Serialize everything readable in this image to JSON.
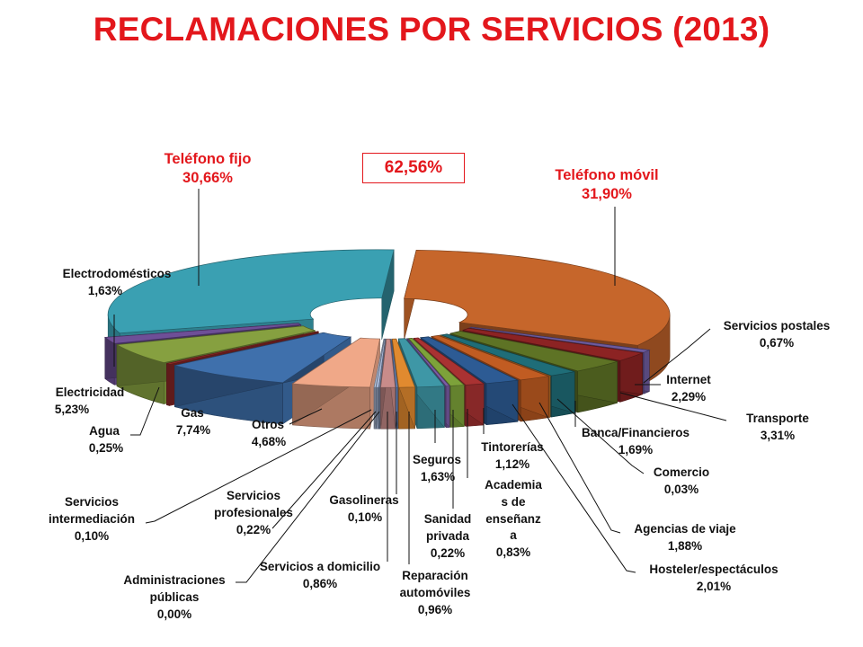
{
  "title": "RECLAMACIONES POR SERVICIOS (2013)",
  "combined_label": "62,56%",
  "chart_data": {
    "type": "pie",
    "title": "RECLAMACIONES POR SERVICIOS (2013)",
    "unit": "%",
    "slices": [
      {
        "label": "Teléfono móvil",
        "value": 31.9,
        "display": "31,90%",
        "color": "#c6662b"
      },
      {
        "label": "Servicios postales",
        "value": 0.67,
        "display": "0,67%",
        "color": "#6e5b9e"
      },
      {
        "label": "Internet",
        "value": 2.29,
        "display": "2,29%",
        "color": "#8c2323"
      },
      {
        "label": "Transporte",
        "value": 3.31,
        "display": "3,31%",
        "color": "#5e7325"
      },
      {
        "label": "Banca/Financieros",
        "value": 1.69,
        "display": "1,69%",
        "color": "#1f6d78"
      },
      {
        "label": "Comercio",
        "value": 0.03,
        "display": "0,03%",
        "color": "#d9812e"
      },
      {
        "label": "Agencias de viaje",
        "value": 1.88,
        "display": "1,88%",
        "color": "#c15c22"
      },
      {
        "label": "Hosteler/espectáculos",
        "value": 2.01,
        "display": "2,01%",
        "color": "#2d5b94"
      },
      {
        "label": "Tintorerías",
        "value": 1.12,
        "display": "1,12%",
        "color": "#a93232"
      },
      {
        "label": "Academias de enseñanza",
        "value": 0.83,
        "display": "0,83%",
        "color": "#7da23a"
      },
      {
        "label": "Sanidad privada",
        "value": 0.22,
        "display": "0,22%",
        "color": "#7a5ca6"
      },
      {
        "label": "Seguros",
        "value": 1.63,
        "display": "1,63%",
        "color": "#3e97a6"
      },
      {
        "label": "Reparación automóviles",
        "value": 0.96,
        "display": "0,96%",
        "color": "#e18a2f"
      },
      {
        "label": "Gasolineras",
        "value": 0.1,
        "display": "0,10%",
        "color": "#6f8fc6"
      },
      {
        "label": "Servicios a domicilio",
        "value": 0.86,
        "display": "0,86%",
        "color": "#c98c8a"
      },
      {
        "label": "Administraciones públicas",
        "value": 0.0,
        "display": "0,00%",
        "color": "#8e9dc0"
      },
      {
        "label": "Servicios profesionales",
        "value": 0.22,
        "display": "0,22%",
        "color": "#a8b9d9"
      },
      {
        "label": "Servicios intermediación",
        "value": 0.1,
        "display": "0,10%",
        "color": "#b8c7e2"
      },
      {
        "label": "Otros",
        "value": 4.68,
        "display": "4,68%",
        "color": "#f0a888"
      },
      {
        "label": "Gas",
        "value": 7.74,
        "display": "7,74%",
        "color": "#3f70ac"
      },
      {
        "label": "Agua",
        "value": 0.25,
        "display": "0,25%",
        "color": "#9b2b2b"
      },
      {
        "label": "Electricidad",
        "value": 5.23,
        "display": "5,23%",
        "color": "#86a040"
      },
      {
        "label": "Electrodomésticos",
        "value": 1.63,
        "display": "1,63%",
        "color": "#6e4f97"
      },
      {
        "label": "Teléfono fijo",
        "value": 30.66,
        "display": "30,66%",
        "color": "#3aa0b2"
      }
    ]
  },
  "labels": {
    "telefono_fijo": "Teléfono fijo",
    "telefono_fijo_pct": "30,66%",
    "telefono_movil": "Teléfono móvil",
    "telefono_movil_pct": "31,90%",
    "electrodomesticos": "Electrodomésticos",
    "electrodomesticos_pct": "1,63%",
    "electricidad": "Electricidad",
    "electricidad_pct": "5,23%",
    "agua": "Agua",
    "agua_pct": "0,25%",
    "gas": "Gas",
    "gas_pct": "7,74%",
    "otros": "Otros",
    "otros_pct": "4,68%",
    "serv_intermediacion_1": "Servicios",
    "serv_intermediacion_2": "intermediación",
    "serv_intermediacion_pct": "0,10%",
    "serv_profesionales_1": "Servicios",
    "serv_profesionales_2": "profesionales",
    "serv_profesionales_pct": "0,22%",
    "administraciones_1": "Administraciones",
    "administraciones_2": "públicas",
    "administraciones_pct": "0,00%",
    "serv_domicilio": "Servicios a domicilio",
    "serv_domicilio_pct": "0,86%",
    "gasolineras": "Gasolineras",
    "gasolineras_pct": "0,10%",
    "reparacion_1": "Reparación",
    "reparacion_2": "automóviles",
    "reparacion_pct": "0,96%",
    "sanidad_1": "Sanidad",
    "sanidad_2": "privada",
    "sanidad_pct": "0,22%",
    "seguros": "Seguros",
    "seguros_pct": "1,63%",
    "academias_1": "Academia",
    "academias_2": "s de",
    "academias_3": "enseñanz",
    "academias_4": "a",
    "academias_pct": "0,83%",
    "tintorerias": "Tintorerías",
    "tintorerias_pct": "1,12%",
    "hosteler": "Hosteler/espectáculos",
    "hosteler_pct": "2,01%",
    "agencias": "Agencias de viaje",
    "agencias_pct": "1,88%",
    "comercio": "Comercio",
    "comercio_pct": "0,03%",
    "banca": "Banca/Financieros",
    "banca_pct": "1,69%",
    "transporte": "Transporte",
    "transporte_pct": "3,31%",
    "internet": "Internet",
    "internet_pct": "2,29%",
    "serv_postales": "Servicios postales",
    "serv_postales_pct": "0,67%"
  }
}
